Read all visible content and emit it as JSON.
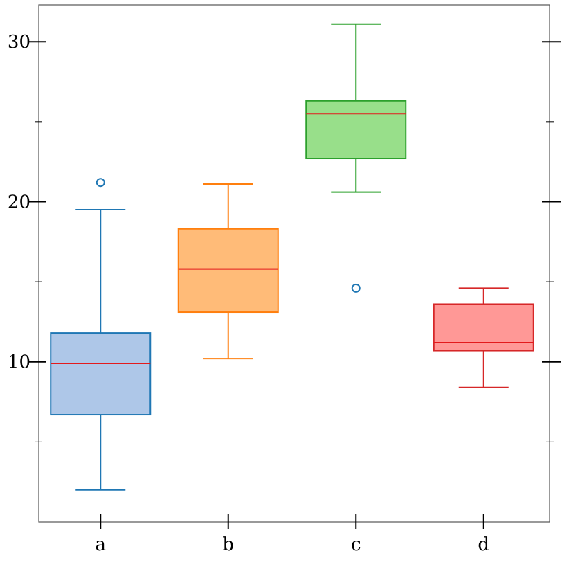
{
  "chart_data": {
    "type": "box",
    "title": "",
    "xlabel": "",
    "ylabel": "",
    "categories": [
      "a",
      "b",
      "c",
      "d"
    ],
    "ylim": [
      0,
      32.3
    ],
    "y_major_ticks": [
      10,
      20,
      30
    ],
    "y_minor_ticks": [
      5,
      15,
      25
    ],
    "y_tick_labels": [
      "10",
      "20",
      "30"
    ],
    "grid": false,
    "boxes": [
      {
        "category": "a",
        "whisker_low": 2.0,
        "q1": 6.7,
        "median": 9.9,
        "q3": 11.8,
        "whisker_high": 19.5,
        "outliers": [
          21.2
        ],
        "fill": "#aec7e8",
        "edge": "#1f77b4",
        "median_color": "#e31a1c",
        "outlier_color": "#1f77b4"
      },
      {
        "category": "b",
        "whisker_low": 10.2,
        "q1": 13.1,
        "median": 15.8,
        "q3": 18.3,
        "whisker_high": 21.1,
        "outliers": [],
        "fill": "#ffbb78",
        "edge": "#ff7f0e",
        "median_color": "#e31a1c",
        "outlier_color": "#1f77b4"
      },
      {
        "category": "c",
        "whisker_low": 20.6,
        "q1": 22.7,
        "median": 25.5,
        "q3": 26.3,
        "whisker_high": 31.1,
        "outliers": [
          14.6
        ],
        "fill": "#98df8a",
        "edge": "#2ca02c",
        "median_color": "#e31a1c",
        "outlier_color": "#1f77b4"
      },
      {
        "category": "d",
        "whisker_low": 8.4,
        "q1": 10.7,
        "median": 11.2,
        "q3": 13.6,
        "whisker_high": 14.6,
        "outliers": [],
        "fill": "#ff9896",
        "edge": "#d62728",
        "median_color": "#e31a1c",
        "outlier_color": "#1f77b4"
      }
    ]
  }
}
